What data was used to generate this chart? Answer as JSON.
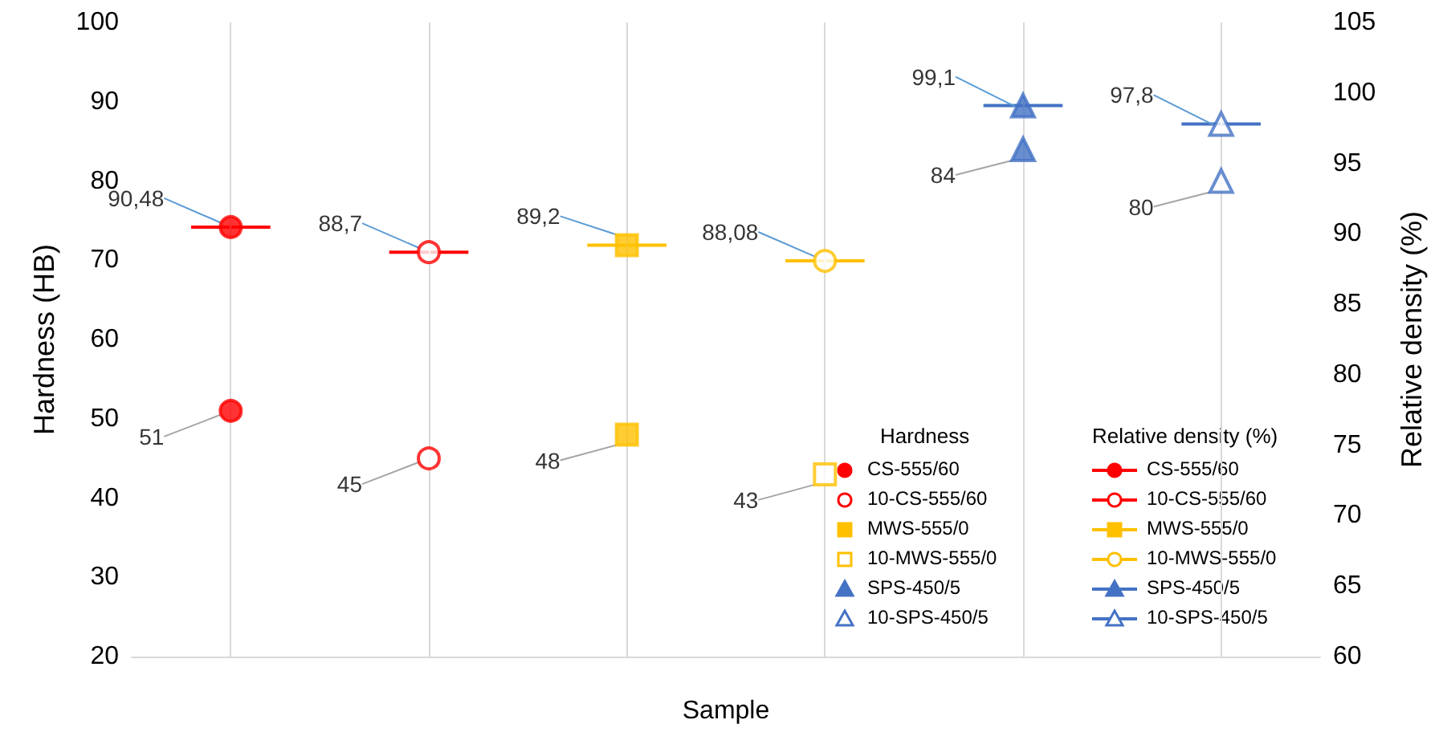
{
  "chart_data": {
    "type": "scatter",
    "xlabel": "Sample",
    "ylabel": "Hardness (HB)",
    "y2label": "Relative density (%)",
    "categories": [
      null,
      null,
      null,
      null,
      null,
      null
    ],
    "ylim": [
      20,
      100
    ],
    "yticks": [
      20,
      30,
      40,
      50,
      60,
      70,
      80,
      90,
      100
    ],
    "y2lim": [
      60,
      105
    ],
    "y2ticks": [
      60,
      65,
      70,
      75,
      80,
      85,
      90,
      95,
      100,
      105
    ],
    "grid": "x",
    "legend": "bottom right",
    "annotations": [
      "Hardness",
      "Relative density (%)"
    ],
    "series": [
      {
        "name": "CS-555/60",
        "color": "#ff0000",
        "marker": "circle",
        "values": [
          51,
          null,
          null,
          null,
          null,
          null
        ],
        "value_labels": [
          "51",
          null,
          null,
          null,
          null,
          null
        ]
      },
      {
        "name": "10-CS-555/60",
        "color": "#ff0000",
        "marker": "circle",
        "values": [
          null,
          45,
          null,
          null,
          null,
          null
        ],
        "value_labels": [
          null,
          "45",
          null,
          null,
          null,
          null
        ]
      },
      {
        "name": "MWS-555/0",
        "color": "#ffc000",
        "marker": "square",
        "values": [
          null,
          null,
          48,
          null,
          null,
          null
        ],
        "value_labels": [
          null,
          null,
          "48",
          null,
          null,
          null
        ]
      },
      {
        "name": "10-MWS-555/0",
        "color": "#ffc000",
        "marker": "square",
        "values": [
          null,
          null,
          null,
          43,
          null,
          null
        ],
        "value_labels": [
          null,
          null,
          null,
          "43",
          null,
          null
        ]
      },
      {
        "name": "SPS-450/5",
        "color": "#4472c4",
        "marker": "triangle",
        "values": [
          null,
          null,
          null,
          null,
          84,
          null
        ],
        "value_labels": [
          null,
          null,
          null,
          null,
          "84",
          null
        ]
      },
      {
        "name": "10-SPS-450/5",
        "color": "#4472c4",
        "marker": "triangle",
        "values": [
          null,
          null,
          null,
          null,
          null,
          80
        ],
        "value_labels": [
          null,
          null,
          null,
          null,
          null,
          "80"
        ]
      },
      {
        "name": "CS-555/60",
        "type": "line",
        "axis": "y2",
        "color": "#ff0000",
        "marker": "circle",
        "values": [
          90.48,
          null,
          null,
          null,
          null,
          null
        ],
        "value_labels": [
          "90,48",
          null,
          null,
          null,
          null,
          null
        ]
      },
      {
        "name": "10-CS-555/60",
        "type": "line",
        "axis": "y2",
        "color": "#ff0000",
        "marker": "circle",
        "values": [
          null,
          88.7,
          null,
          null,
          null,
          null
        ],
        "value_labels": [
          null,
          "88,7",
          null,
          null,
          null,
          null
        ]
      },
      {
        "name": "MWS-555/0",
        "type": "line",
        "axis": "y2",
        "color": "#ffc000",
        "marker": "square",
        "values": [
          null,
          null,
          89.2,
          null,
          null,
          null
        ],
        "value_labels": [
          null,
          null,
          "89,2",
          null,
          null,
          null
        ]
      },
      {
        "name": "10-MWS-555/0",
        "type": "line",
        "axis": "y2",
        "color": "#ffc000",
        "marker": "circle",
        "values": [
          null,
          null,
          null,
          88.08,
          null,
          null
        ],
        "value_labels": [
          null,
          null,
          null,
          "88,08",
          null,
          null
        ]
      },
      {
        "name": "SPS-450/5",
        "type": "line",
        "axis": "y2",
        "color": "#4472c4",
        "marker": "triangle",
        "values": [
          null,
          null,
          null,
          null,
          99.1,
          null
        ],
        "value_labels": [
          null,
          null,
          null,
          null,
          "99,1",
          null
        ]
      },
      {
        "name": "10-SPS-450/5",
        "type": "line",
        "axis": "y2",
        "color": "#4472c4",
        "marker": "triangle",
        "values": [
          null,
          null,
          null,
          null,
          null,
          97.8
        ],
        "value_labels": [
          null,
          null,
          null,
          null,
          null,
          "97,8"
        ]
      }
    ]
  }
}
